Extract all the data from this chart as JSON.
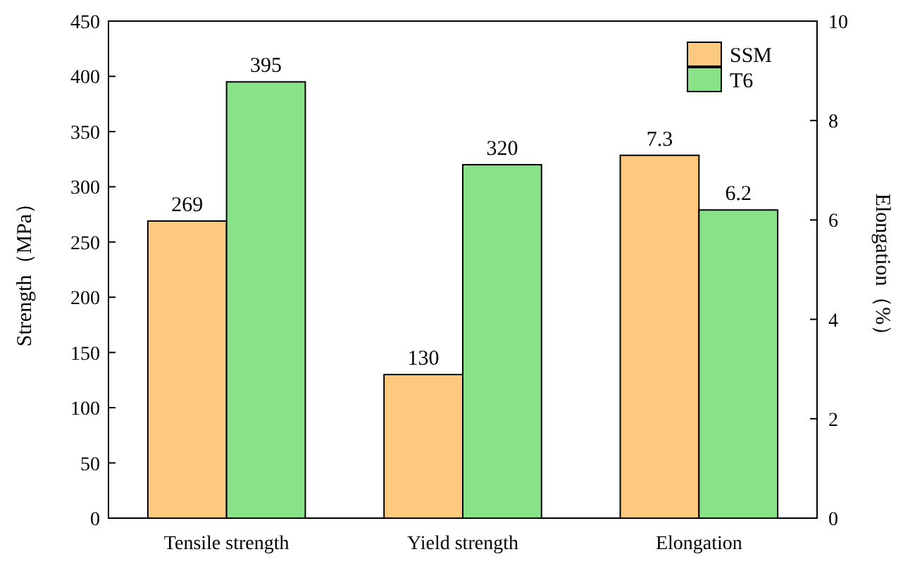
{
  "chart_data": {
    "type": "bar",
    "categories": [
      "Tensile strength",
      "Yield strength",
      "Elongation"
    ],
    "series": [
      {
        "name": "SSM",
        "color": "#fdc97f",
        "values": [
          269,
          130,
          null
        ]
      },
      {
        "name": "T6",
        "color": "#88e388",
        "values": [
          395,
          320,
          null
        ]
      },
      {
        "color": "#fdc97f",
        "values": [
          null,
          null,
          7.3
        ],
        "axis": "y2"
      },
      {
        "color": "#88e388",
        "values": [
          null,
          null,
          6.2
        ],
        "axis": "y2"
      }
    ],
    "ylabel": "Strength（MPa）",
    "y2label": "Elongation（%）",
    "ylim": [
      0,
      450
    ],
    "yticks": [
      0,
      50,
      100,
      150,
      200,
      250,
      300,
      350,
      400,
      450
    ],
    "y2lim": [
      0,
      10
    ],
    "y2ticks": [
      0,
      2,
      4,
      6,
      8,
      10
    ],
    "data_labels": true,
    "legend": "top right",
    "grid": false
  }
}
